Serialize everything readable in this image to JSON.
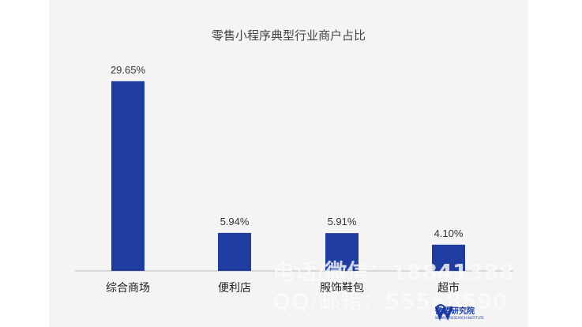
{
  "chart_data": {
    "type": "bar",
    "title": "零售小程序典型行业商户占比",
    "categories": [
      "综合商场",
      "便利店",
      "服饰鞋包",
      "超市"
    ],
    "values": [
      29.65,
      5.94,
      5.91,
      4.1
    ],
    "value_labels": [
      "29.65%",
      "5.94%",
      "5.91%",
      "4.10%"
    ],
    "ylim": [
      0,
      30
    ],
    "grid": false,
    "bar_color": "#1f3da0"
  },
  "watermark": {
    "line1": "电话/微信：18841388",
    "line2": "QQ/邮箱：55568590"
  },
  "logo": {
    "name": "微盟研究院",
    "sub": "WEIMOB RESEARCH INSTITUTE"
  }
}
